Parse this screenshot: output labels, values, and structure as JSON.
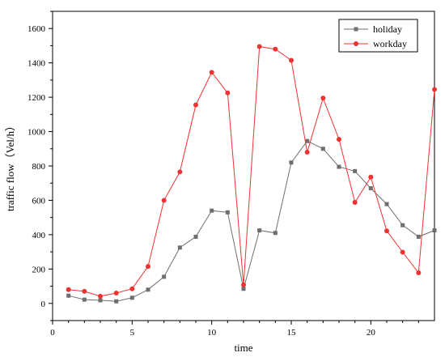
{
  "chart_data": {
    "type": "line",
    "xlabel": "time",
    "ylabel": "traffic flow（Vel/h）",
    "xlim": [
      0,
      24
    ],
    "ylim": [
      -100,
      1700
    ],
    "xticks": [
      0,
      5,
      10,
      15,
      20
    ],
    "xtick_labels": [
      "0",
      "5",
      "10",
      "15",
      "20"
    ],
    "yticks": [
      0,
      200,
      400,
      600,
      800,
      1000,
      1200,
      1400,
      1600
    ],
    "ytick_labels": [
      "0",
      "200",
      "400",
      "600",
      "800",
      "1000",
      "1200",
      "1400",
      "1600"
    ],
    "grid": false,
    "legend_position": "top-right",
    "x": [
      1,
      2,
      3,
      4,
      5,
      6,
      7,
      8,
      9,
      10,
      11,
      12,
      13,
      14,
      15,
      16,
      17,
      18,
      19,
      20,
      21,
      22,
      23,
      24
    ],
    "series": [
      {
        "name": "holiday",
        "color": "#6e6e6e",
        "marker": "square",
        "values": [
          45,
          22,
          18,
          12,
          33,
          80,
          155,
          325,
          388,
          540,
          530,
          85,
          425,
          410,
          820,
          945,
          900,
          795,
          770,
          670,
          578,
          455,
          388,
          425
        ]
      },
      {
        "name": "workday",
        "color": "#ee3333",
        "marker": "circle",
        "values": [
          80,
          70,
          42,
          60,
          85,
          215,
          600,
          765,
          1155,
          1345,
          1225,
          108,
          1495,
          1480,
          1415,
          880,
          1195,
          955,
          588,
          735,
          422,
          298,
          178,
          1245
        ]
      }
    ]
  }
}
